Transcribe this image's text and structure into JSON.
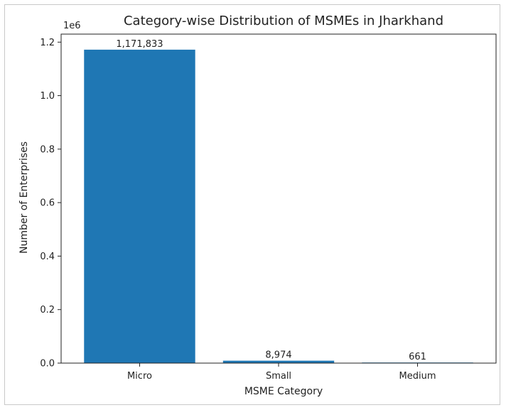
{
  "chart_data": {
    "type": "bar",
    "title": "Category-wise Distribution of MSMEs in Jharkhand",
    "xlabel": "MSME Category",
    "ylabel": "Number of Enterprises",
    "categories": [
      "Micro",
      "Small",
      "Medium"
    ],
    "values": [
      1171833,
      8974,
      661
    ],
    "data_labels": [
      "1,171,833",
      "8,974",
      "661"
    ],
    "ylim": [
      0,
      1230000
    ],
    "yticks": [
      0,
      200000,
      400000,
      600000,
      800000,
      1000000,
      1200000
    ],
    "ytick_labels": [
      "0.0",
      "0.2",
      "0.4",
      "0.6",
      "0.8",
      "1.0",
      "1.2"
    ],
    "offset_label": "1e6",
    "bar_color": "#1f77b4",
    "grid": false,
    "legend": "none"
  }
}
